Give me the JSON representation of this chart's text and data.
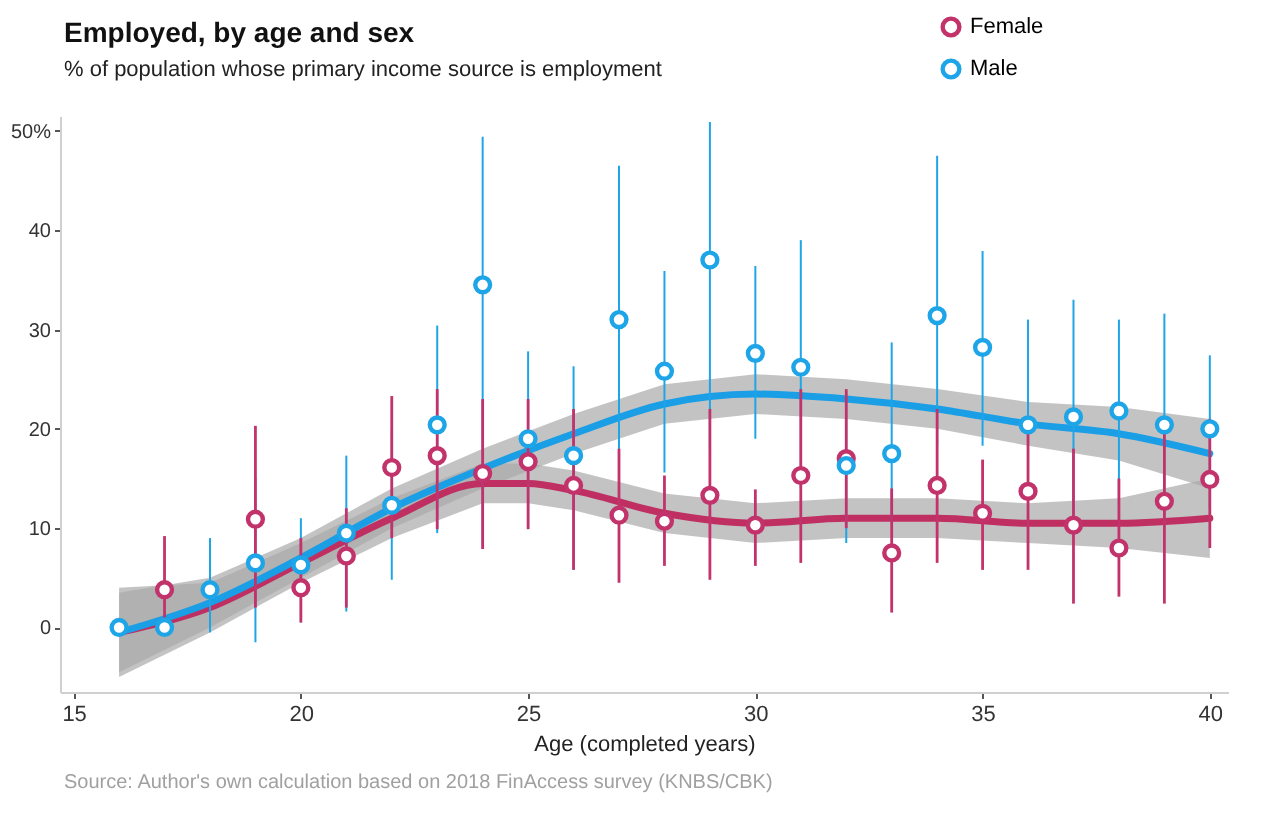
{
  "chart_data": {
    "type": "scatter",
    "title": "Employed, by age and sex",
    "subtitle": "% of population whose primary income source is employment",
    "xlabel": "Age (completed years)",
    "annotations": [
      "Source: Author's own calculation based on 2018 FinAccess survey (KNBS/CBK)"
    ],
    "xlim": [
      14.7,
      40.4
    ],
    "xticks": [
      15,
      20,
      25,
      30,
      35,
      40
    ],
    "ylim": [
      -6.5,
      51.5
    ],
    "yticks": [
      0,
      10,
      20,
      30,
      40,
      {
        "value": 50,
        "label": "50%"
      }
    ],
    "grid": false,
    "legend": "top right",
    "marker": "circle",
    "series": [
      {
        "type": "line",
        "marker": "none",
        "color": "#bf2f62",
        "x": [
          16,
          18,
          20,
          22,
          24,
          25,
          26,
          28,
          30,
          32,
          34,
          36,
          38,
          40
        ],
        "values": [
          -0.5,
          2,
          6.5,
          11,
          14.5,
          14.5,
          13.8,
          11.5,
          10.5,
          11,
          11,
          10.5,
          10.5,
          11
        ],
        "lower": [
          -5,
          -0.5,
          4.5,
          9,
          12.5,
          12.5,
          11.8,
          9.5,
          8.5,
          9,
          9,
          8.5,
          8,
          7
        ],
        "upper": [
          4,
          4.5,
          8.5,
          13,
          16.5,
          16.5,
          15.8,
          13.5,
          12.5,
          13,
          13,
          12.5,
          13,
          15
        ]
      },
      {
        "type": "line",
        "marker": "none",
        "color": "#1a9ee6",
        "x": [
          16,
          18,
          20,
          22,
          24,
          26,
          28,
          30,
          32,
          34,
          36,
          38,
          40
        ],
        "values": [
          -0.5,
          2.5,
          7,
          12,
          16,
          19.5,
          22.5,
          23.5,
          23,
          22,
          20.5,
          19.5,
          17.5
        ],
        "lower": [
          -4.5,
          0,
          5,
          10,
          14,
          17.5,
          20.5,
          21.5,
          21,
          20,
          18.3,
          16.8,
          14
        ],
        "upper": [
          3.5,
          5,
          9,
          14,
          18,
          21.5,
          24.5,
          25.5,
          25,
          24,
          22.7,
          22.2,
          21
        ]
      },
      {
        "type": "scatter",
        "name": "Female",
        "color": "#c2326b",
        "x": [
          17,
          19,
          20,
          21,
          22,
          23,
          24,
          25,
          26,
          27,
          28,
          29,
          30,
          31,
          32,
          33,
          34,
          35,
          36,
          37,
          38,
          39,
          40
        ],
        "values": [
          3.8,
          10.9,
          4,
          7.2,
          16.1,
          17.3,
          15.5,
          16.7,
          14.3,
          11.3,
          10.7,
          13.3,
          10.3,
          15.3,
          17,
          7.5,
          14.3,
          11.5,
          13.7,
          10.3,
          8,
          12.7,
          14.9
        ],
        "errors": [
          [
            1,
            9.2
          ],
          [
            2,
            20.3
          ],
          [
            0.5,
            9
          ],
          [
            2,
            12
          ],
          [
            9,
            23.3
          ],
          [
            9.9,
            24
          ],
          [
            7.9,
            23
          ],
          [
            9.9,
            23
          ],
          [
            5.8,
            22
          ],
          [
            4.5,
            18
          ],
          [
            6.2,
            15.3
          ],
          [
            4.8,
            22
          ],
          [
            6.2,
            13.9
          ],
          [
            6.5,
            24
          ],
          [
            10,
            24
          ],
          [
            1.5,
            14
          ],
          [
            6.5,
            22
          ],
          [
            5.8,
            16.9
          ],
          [
            5.8,
            21
          ],
          [
            2.4,
            18
          ],
          [
            3.1,
            15
          ],
          [
            2.4,
            20
          ],
          [
            8,
            21
          ]
        ]
      },
      {
        "type": "scatter",
        "name": "Male",
        "color": "#1ea5e8",
        "x": [
          16,
          17,
          18,
          19,
          20,
          21,
          22,
          23,
          24,
          25,
          26,
          27,
          28,
          29,
          30,
          31,
          32,
          33,
          34,
          35,
          36,
          37,
          38,
          39,
          40
        ],
        "values": [
          0,
          0,
          3.8,
          6.5,
          6.3,
          9.5,
          12.3,
          20.4,
          34.5,
          19,
          17.3,
          31,
          25.8,
          37,
          27.6,
          26.2,
          16.3,
          17.5,
          31.4,
          28.2,
          20.4,
          21.2,
          21.8,
          20.4,
          20
        ],
        "errors": [
          null,
          null,
          [
            -0.5,
            9
          ],
          [
            -1.5,
            15
          ],
          [
            0.5,
            11
          ],
          [
            1.6,
            17.3
          ],
          [
            4.8,
            20
          ],
          [
            9.5,
            30.4
          ],
          [
            8,
            49.4
          ],
          [
            9.9,
            27.8
          ],
          [
            5.8,
            26.3
          ],
          [
            5,
            46.5
          ],
          [
            15.6,
            35.9
          ],
          [
            18,
            50.9
          ],
          [
            19,
            36.4
          ],
          [
            14,
            39
          ],
          [
            8.5,
            23.7
          ],
          [
            10.3,
            28.7
          ],
          [
            18.3,
            47.5
          ],
          [
            18.3,
            37.9
          ],
          [
            13.6,
            31
          ],
          [
            10,
            33
          ],
          [
            12,
            31
          ],
          [
            10,
            31.6
          ],
          [
            12,
            27.4
          ]
        ]
      }
    ]
  }
}
